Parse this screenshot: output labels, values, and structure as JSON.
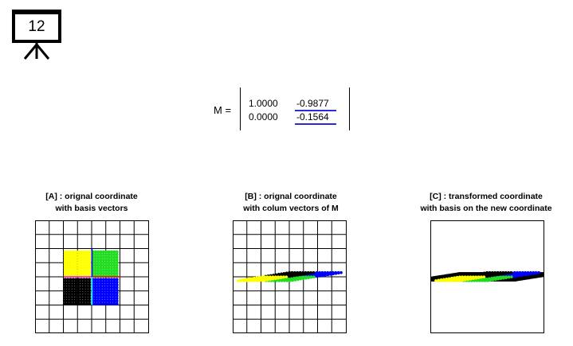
{
  "slide_number": "12",
  "matrix": {
    "label": "M =",
    "rows": [
      [
        "1.0000",
        "-0.9877"
      ],
      [
        "0.0000",
        "-0.1564"
      ]
    ]
  },
  "panels": [
    {
      "title_line1": "[A] : orignal coordinate",
      "title_line2": "with basis vectors"
    },
    {
      "title_line1": "[B] : orignal coordinate",
      "title_line2": "with colum vectors of M"
    },
    {
      "title_line1": "[C] : transformed coordinate",
      "title_line2": "with basis on the new coordinate"
    }
  ],
  "colors": {
    "yellow": "#ffff00",
    "green": "#22dd22",
    "black": "#000000",
    "blue": "#0000ff",
    "red": "#ff0000",
    "magenta": "#ff00ff",
    "cyan": "#00ffff",
    "underline": "#2b2bd6"
  }
}
